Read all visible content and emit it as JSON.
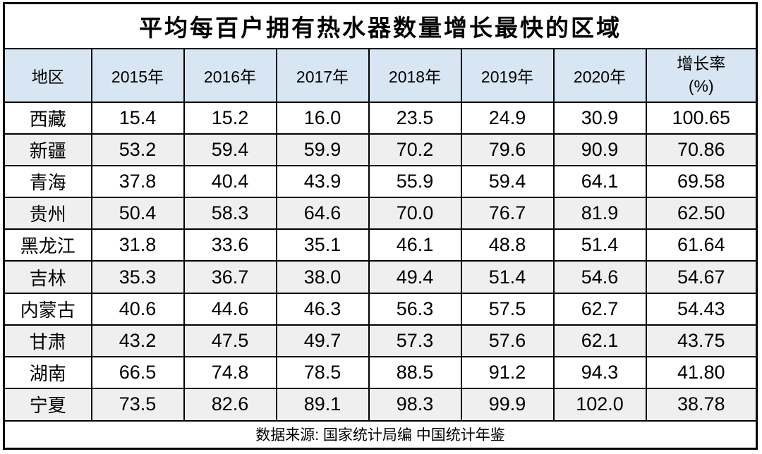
{
  "title": "平均每百户拥有热水器数量增长最快的区域",
  "source": "数据来源: 国家统计局编 中国统计年鉴",
  "colors": {
    "header_bg": "#d8e5f2",
    "alt_row_bg": "#efefef",
    "border": "#000000",
    "text": "#000000",
    "page_bg": "#ffffff"
  },
  "chart_data": {
    "type": "table",
    "title": "平均每百户拥有热水器数量增长最快的区域",
    "columns": [
      "地区",
      "2015年",
      "2016年",
      "2017年",
      "2018年",
      "2019年",
      "2020年",
      "增长率(%)"
    ],
    "growth_header": {
      "line1": "增长率",
      "line2": "(%)"
    },
    "rows": [
      [
        "西藏",
        "15.4",
        "15.2",
        "16.0",
        "23.5",
        "24.9",
        "30.9",
        "100.65"
      ],
      [
        "新疆",
        "53.2",
        "59.4",
        "59.9",
        "70.2",
        "79.6",
        "90.9",
        "70.86"
      ],
      [
        "青海",
        "37.8",
        "40.4",
        "43.9",
        "55.9",
        "59.4",
        "64.1",
        "69.58"
      ],
      [
        "贵州",
        "50.4",
        "58.3",
        "64.6",
        "70.0",
        "76.7",
        "81.9",
        "62.50"
      ],
      [
        "黑龙江",
        "31.8",
        "33.6",
        "35.1",
        "46.1",
        "48.8",
        "51.4",
        "61.64"
      ],
      [
        "吉林",
        "35.3",
        "36.7",
        "38.0",
        "49.4",
        "51.4",
        "54.6",
        "54.67"
      ],
      [
        "内蒙古",
        "40.6",
        "44.6",
        "46.3",
        "56.3",
        "57.5",
        "62.7",
        "54.43"
      ],
      [
        "甘肃",
        "43.2",
        "47.5",
        "49.7",
        "57.3",
        "57.6",
        "62.1",
        "43.75"
      ],
      [
        "湖南",
        "66.5",
        "74.8",
        "78.5",
        "88.5",
        "91.2",
        "94.3",
        "41.80"
      ],
      [
        "宁夏",
        "73.5",
        "82.6",
        "89.1",
        "98.3",
        "99.9",
        "102.0",
        "38.78"
      ]
    ],
    "source": "数据来源: 国家统计局编 中国统计年鉴",
    "layout": {
      "header_row_bg": "#d8e5f2",
      "alternating_rows": true,
      "grid": true,
      "all_text_centered": true
    }
  }
}
